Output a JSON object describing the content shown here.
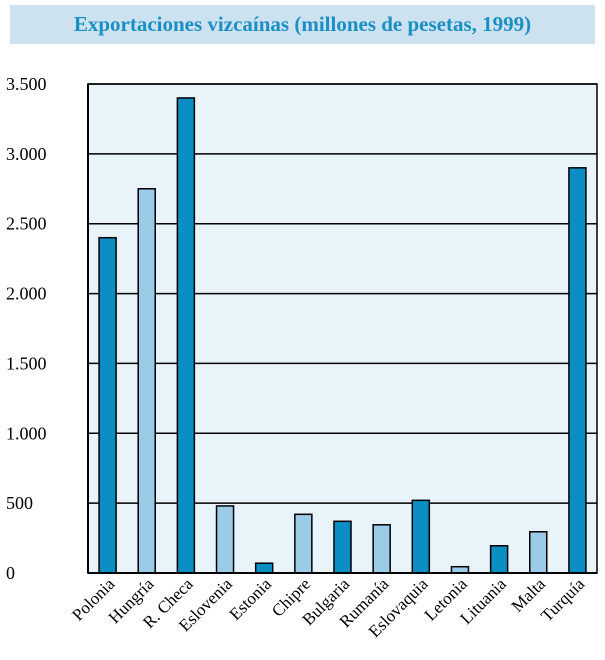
{
  "colors": {
    "title_bg": "#cde2f1",
    "title_text": "#1b8fc3",
    "plot_bg": "#e8f3fa",
    "bar_dark": "#0a8ec4",
    "bar_light": "#9ccbe8",
    "axis": "#000000"
  },
  "chart_data": {
    "type": "bar",
    "title": "Exportaciones vizcaínas (millones de pesetas, 1999)",
    "xlabel": "",
    "ylabel": "",
    "ylim": [
      0,
      3500
    ],
    "grid": true,
    "yticks": [
      0,
      500,
      1000,
      1500,
      2000,
      2500,
      3000,
      3500
    ],
    "ytick_labels": [
      "0",
      "500",
      "1.000",
      "1.500",
      "2.000",
      "2.500",
      "3.000",
      "3.500"
    ],
    "categories": [
      "Polonia",
      "Hungría",
      "R. Checa",
      "Eslovenia",
      "Estonia",
      "Chipre",
      "Bulgaria",
      "Rumanía",
      "Eslovaquia",
      "Letonia",
      "Lituania",
      "Malta",
      "Turquía"
    ],
    "values": [
      2400,
      2750,
      3400,
      480,
      70,
      420,
      370,
      345,
      520,
      45,
      195,
      295,
      2900
    ],
    "bar_shades": [
      "dark",
      "light",
      "dark",
      "light",
      "dark",
      "light",
      "dark",
      "light",
      "dark",
      "light",
      "dark",
      "light",
      "dark"
    ]
  }
}
